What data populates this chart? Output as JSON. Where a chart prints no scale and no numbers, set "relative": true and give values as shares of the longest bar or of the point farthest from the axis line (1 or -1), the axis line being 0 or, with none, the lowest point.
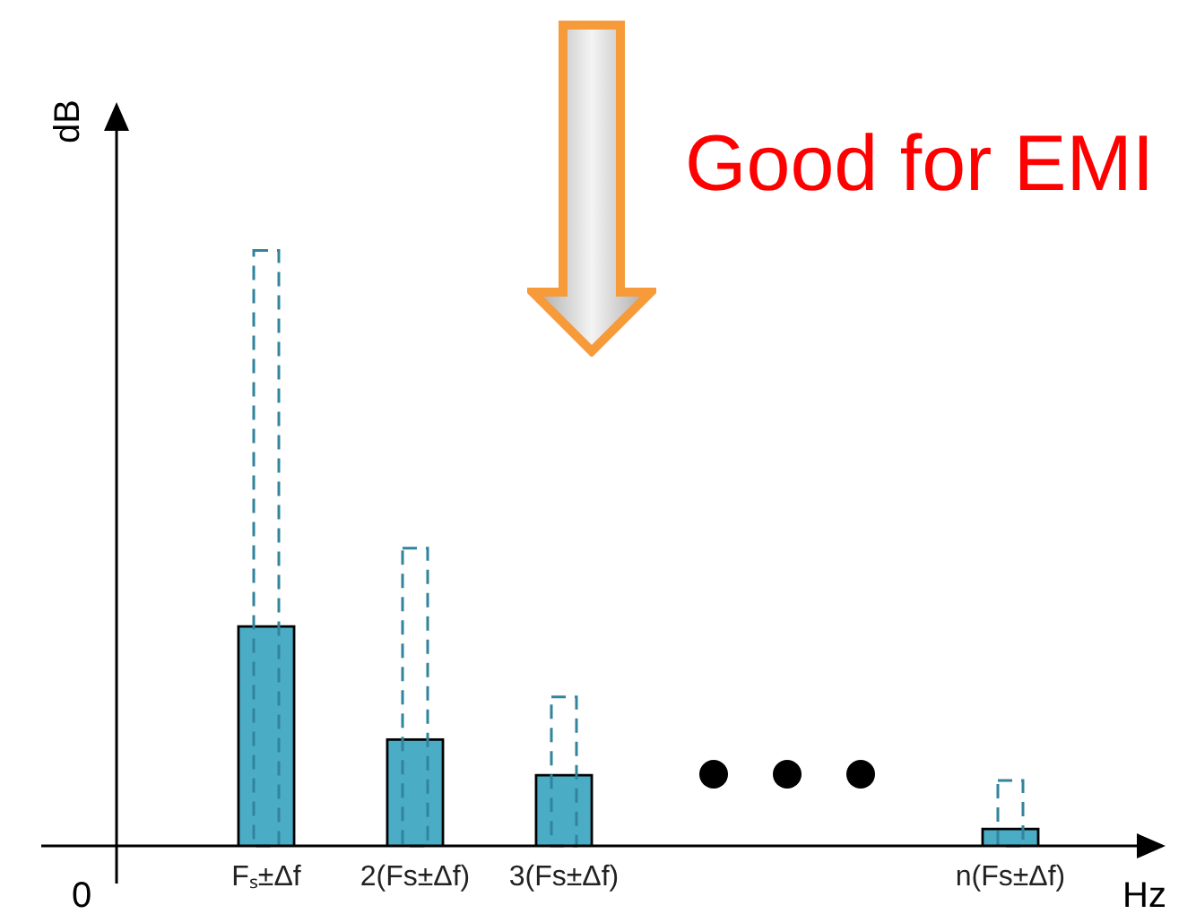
{
  "chart_data": {
    "type": "bar",
    "relative": true,
    "xlabel": "Hz",
    "ylabel": "dB",
    "categories": [
      "Fₛ±Δf",
      "2(Fs±Δf)",
      "3(Fs±Δf)",
      null,
      null,
      "n(Fs±Δf)"
    ],
    "series": [
      {
        "color": "#4bacc6",
        "values": [
          0.37,
          0.18,
          0.12,
          null,
          null,
          0.03
        ]
      },
      {
        "color": "#31849b",
        "line_style": "dashed",
        "values": [
          1,
          0.5,
          0.25,
          null,
          null,
          0.11
        ]
      }
    ],
    "annotations": [
      "Good for EMI",
      "0"
    ],
    "grid": false,
    "legend": false
  }
}
